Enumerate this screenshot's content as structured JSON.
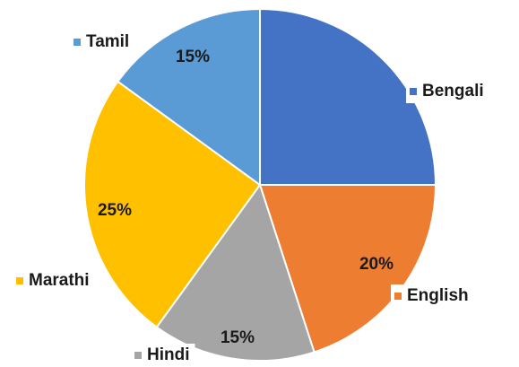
{
  "chart_data": {
    "type": "pie",
    "categories": [
      "Bengali",
      "English",
      "Hindi",
      "Marathi",
      "Tamil"
    ],
    "values": [
      25,
      20,
      15,
      25,
      15
    ],
    "value_labels": [
      null,
      "20%",
      "15%",
      "25%",
      "15%"
    ],
    "colors": [
      "#4472c4",
      "#ed7d31",
      "#a5a5a5",
      "#ffc000",
      "#5b9bd5"
    ]
  }
}
